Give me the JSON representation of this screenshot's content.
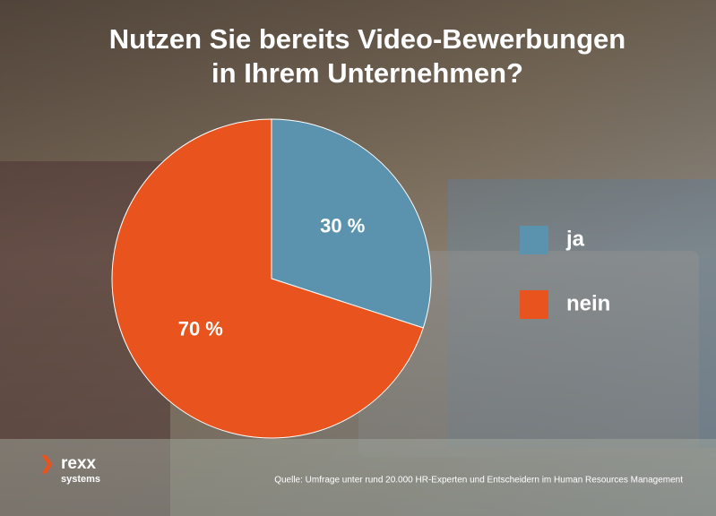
{
  "chart_data": {
    "type": "pie",
    "title": [
      "Nutzen Sie bereits Video-Bewerbungen",
      "in Ihrem Unternehmen?"
    ],
    "categories": [
      "ja",
      "nein"
    ],
    "values": [
      30,
      70
    ],
    "value_labels": [
      "30 %",
      "70 %"
    ],
    "colors": [
      "#5b93ae",
      "#e9531e"
    ],
    "legend": "right",
    "source": "Quelle: Umfrage unter rund 20.000 HR-Experten und Entscheidern im Human Resources Management"
  },
  "logo": [
    "rexx",
    "systems"
  ]
}
